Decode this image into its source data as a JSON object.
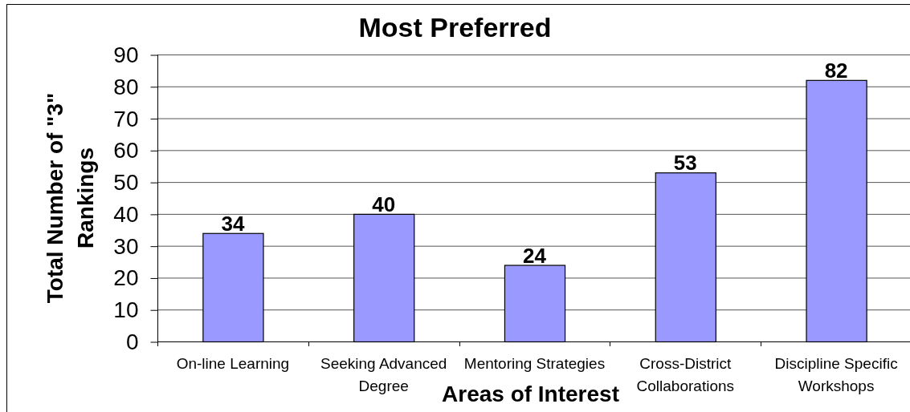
{
  "chart_data": {
    "type": "bar",
    "title": "Most Preferred",
    "xlabel": "Areas of Interest",
    "ylabel": "Total Number of \"3\" Rankings",
    "categories": [
      "On-line Learning",
      "Seeking Advanced Degree",
      "Mentoring Strategies",
      "Cross-District Collaborations",
      "Discipline Specific Workshops"
    ],
    "values": [
      34,
      40,
      24,
      53,
      82
    ],
    "color": "#9999ff",
    "ylim": [
      0,
      90
    ],
    "yticks": [
      0,
      10,
      20,
      30,
      40,
      50,
      60,
      70,
      80,
      90
    ],
    "grid": "y",
    "data_labels": true
  }
}
